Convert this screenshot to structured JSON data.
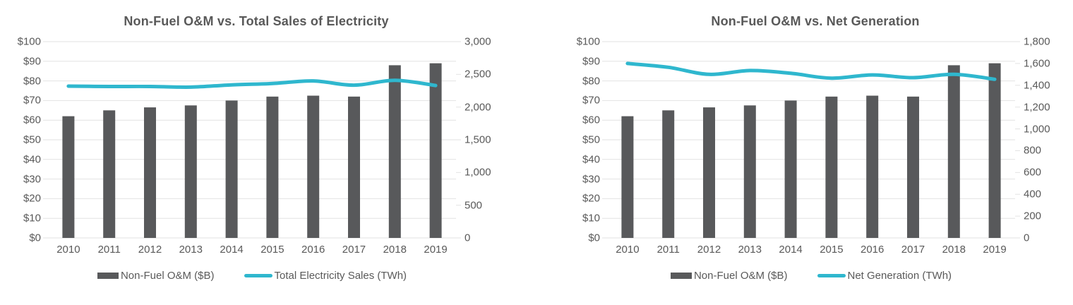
{
  "colors": {
    "bar": "#58595B",
    "line": "#2FB7CE",
    "gridline": "#E2E2E2",
    "text": "#595959",
    "background": "#FFFFFF"
  },
  "chart_data": [
    {
      "type": "bar",
      "subtype": "combo-bar-line-dual-axis",
      "title": "Non-Fuel O&M vs. Total Sales of Electricity",
      "categories": [
        "2010",
        "2011",
        "2012",
        "2013",
        "2014",
        "2015",
        "2016",
        "2017",
        "2018",
        "2019"
      ],
      "series": [
        {
          "name": "Non-Fuel O&M ($B)",
          "type": "bar",
          "axis": "left",
          "values": [
            62,
            65,
            66.5,
            67.5,
            70,
            72,
            72.5,
            72,
            88,
            89
          ]
        },
        {
          "name": "Total Electricity Sales (TWh)",
          "type": "line",
          "axis": "right",
          "values": [
            2320,
            2315,
            2315,
            2305,
            2340,
            2360,
            2400,
            2335,
            2410,
            2330
          ]
        }
      ],
      "axes": {
        "left": {
          "min": 0,
          "max": 100,
          "ticks": [
            "$100",
            "$90",
            "$80",
            "$70",
            "$60",
            "$50",
            "$40",
            "$30",
            "$20",
            "$10",
            "$0"
          ]
        },
        "right": {
          "min": 0,
          "max": 3000,
          "ticks": [
            "3,000",
            "2,500",
            "2,000",
            "1,500",
            "1,000",
            "500",
            "0"
          ]
        }
      },
      "grid": "horizontal",
      "legend_position": "bottom"
    },
    {
      "type": "bar",
      "subtype": "combo-bar-line-dual-axis",
      "title": "Non-Fuel O&M vs. Net Generation",
      "categories": [
        "2010",
        "2011",
        "2012",
        "2013",
        "2014",
        "2015",
        "2016",
        "2017",
        "2018",
        "2019"
      ],
      "series": [
        {
          "name": "Non-Fuel O&M ($B)",
          "type": "bar",
          "axis": "left",
          "values": [
            62,
            65,
            66.5,
            67.5,
            70,
            72,
            72.5,
            72,
            88,
            89
          ]
        },
        {
          "name": "Net Generation (TWh)",
          "type": "line",
          "axis": "right",
          "values": [
            1600,
            1565,
            1500,
            1535,
            1510,
            1465,
            1495,
            1470,
            1500,
            1455
          ]
        }
      ],
      "axes": {
        "left": {
          "min": 0,
          "max": 100,
          "ticks": [
            "$100",
            "$90",
            "$80",
            "$70",
            "$60",
            "$50",
            "$40",
            "$30",
            "$20",
            "$10",
            "$0"
          ]
        },
        "right": {
          "min": 0,
          "max": 1800,
          "ticks": [
            "1,800",
            "1,600",
            "1,400",
            "1,200",
            "1,000",
            "800",
            "600",
            "400",
            "200",
            "0"
          ]
        }
      },
      "grid": "horizontal",
      "legend_position": "bottom"
    }
  ]
}
